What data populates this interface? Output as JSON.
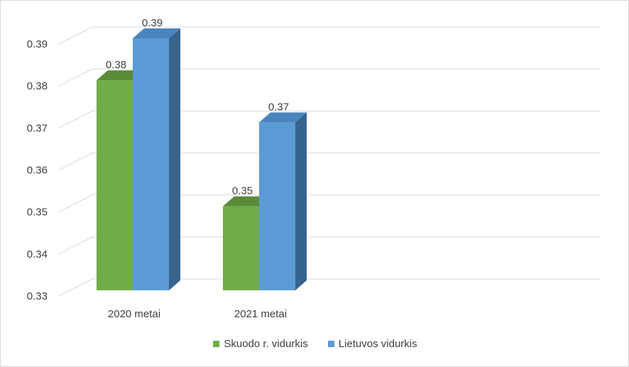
{
  "chart_data": {
    "type": "bar",
    "categories": [
      "2020 metai",
      "2021 metai"
    ],
    "series": [
      {
        "name": "Skuodo r. vidurkis",
        "values": [
          0.38,
          0.35
        ],
        "color": "#70ad47",
        "side_color": "#4e7a31",
        "top_color": "#5b8a38"
      },
      {
        "name": "Lietuvos vidurkis",
        "values": [
          0.39,
          0.37
        ],
        "color": "#5b9bd5",
        "side_color": "#36648f",
        "top_color": "#4a86bd"
      }
    ],
    "data_labels": [
      [
        "0.38",
        "0.35"
      ],
      [
        "0.39",
        "0.37"
      ]
    ],
    "y_ticks": [
      "0.33",
      "0.34",
      "0.35",
      "0.36",
      "0.37",
      "0.38",
      "0.39"
    ],
    "ylim": [
      0.33,
      0.39
    ],
    "grid": true,
    "legend": "bottom",
    "title": "",
    "xlabel": "",
    "ylabel": ""
  }
}
